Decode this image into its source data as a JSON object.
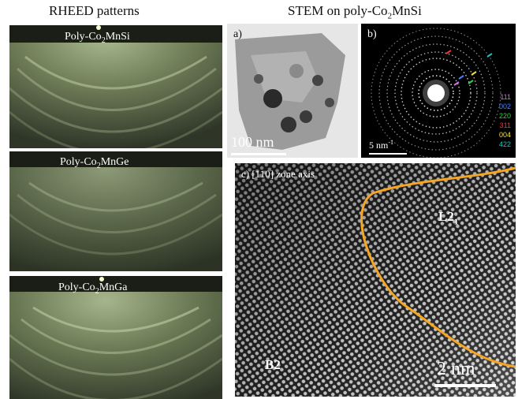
{
  "headers": {
    "left": "RHEED patterns",
    "right_prefix": "STEM on poly-Co",
    "right_sub": "2",
    "right_suffix": "MnSi"
  },
  "rheed": [
    {
      "prefix": "Poly-Co",
      "sub": "2",
      "suffix": "MnSi"
    },
    {
      "prefix": "Poly-Co",
      "sub": "2",
      "suffix": "MnGe"
    },
    {
      "prefix": "Poly-Co",
      "sub": "2",
      "suffix": "MnGa"
    }
  ],
  "panel_a": {
    "label": "a)",
    "scale": "100 nm"
  },
  "panel_b": {
    "label": "b)",
    "scale_base": "5 nm",
    "scale_sup": "-1",
    "rings": [
      {
        "label": "111",
        "color": "#d070e0"
      },
      {
        "label": "002",
        "color": "#4a80ff"
      },
      {
        "label": "220",
        "color": "#30d040"
      },
      {
        "label": "311",
        "color": "#ff3030"
      },
      {
        "label": "004",
        "color": "#f0e040"
      },
      {
        "label": "422",
        "color": "#20c0c0"
      }
    ]
  },
  "panel_c": {
    "label": "c) [110] zone axis",
    "phase_1_base": "L2",
    "phase_1_sub": "1",
    "phase_2": "B2",
    "scale": "2 nm",
    "boundary_color": "#f5a623"
  }
}
